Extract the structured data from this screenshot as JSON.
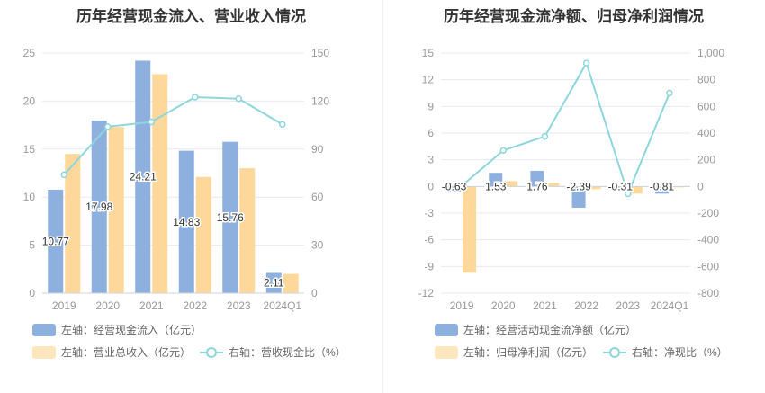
{
  "colors": {
    "bar1": "#8eb0de",
    "bar2": "#fdd89a",
    "line": "#8dd6dd",
    "grid": "#e6e9f0",
    "axis": "#999999",
    "label": "#333333"
  },
  "chart_data": [
    {
      "type": "bar",
      "title": "历年经营现金流入、营业收入情况",
      "categories": [
        "2019",
        "2020",
        "2021",
        "2022",
        "2023",
        "2024Q1"
      ],
      "left_axis": {
        "ylim": [
          0,
          25
        ],
        "ticks": [
          "0",
          "5",
          "10",
          "15",
          "20",
          "25"
        ]
      },
      "right_axis": {
        "ylim": [
          0,
          150
        ],
        "ticks": [
          "0",
          "30",
          "60",
          "90",
          "120",
          "150"
        ]
      },
      "series": [
        {
          "name": "左轴：经营现金流入（亿元）",
          "type": "bar",
          "axis": "left",
          "values": [
            10.77,
            17.98,
            24.21,
            14.83,
            15.76,
            2.11
          ],
          "labels": [
            "10.77",
            "17.98",
            "24.21",
            "14.83",
            "15.76",
            "2.11"
          ]
        },
        {
          "name": "左轴：营业总收入（亿元）",
          "type": "bar",
          "axis": "left",
          "values": [
            14.5,
            17.3,
            22.8,
            12.1,
            13.0,
            2.0
          ]
        },
        {
          "name": "右轴：营收现金比（%）",
          "type": "line",
          "axis": "right",
          "values": [
            74,
            104,
            107,
            122.5,
            121.5,
            105.5
          ]
        }
      ]
    },
    {
      "type": "bar",
      "title": "历年经营现金流净额、归母净利润情况",
      "categories": [
        "2019",
        "2020",
        "2021",
        "2022",
        "2023",
        "2024Q1"
      ],
      "left_axis": {
        "ylim": [
          -12,
          15
        ],
        "ticks": [
          "-12",
          "-9",
          "-6",
          "-3",
          "0",
          "3",
          "6",
          "9",
          "12",
          "15"
        ]
      },
      "right_axis": {
        "ylim": [
          -800,
          1000
        ],
        "ticks": [
          "-800",
          "-600",
          "-400",
          "-200",
          "0",
          "200",
          "400",
          "600",
          "800",
          "1,000"
        ]
      },
      "series": [
        {
          "name": "左轴：经营活动现金流净额（亿元）",
          "type": "bar",
          "axis": "left",
          "values": [
            -0.63,
            1.53,
            1.76,
            -2.39,
            -0.31,
            -0.81
          ],
          "labels": [
            "-0.63",
            "1.53",
            "1.76",
            "-2.39",
            "-0.31",
            "-0.81"
          ]
        },
        {
          "name": "左轴：归母净利润（亿元）",
          "type": "bar",
          "axis": "left",
          "values": [
            -9.7,
            0.6,
            0.4,
            -0.3,
            -0.8,
            -0.1
          ]
        },
        {
          "name": "右轴：净现比（%）",
          "type": "line",
          "axis": "right",
          "values": [
            5,
            270,
            375,
            925,
            -55,
            700
          ]
        }
      ]
    }
  ]
}
